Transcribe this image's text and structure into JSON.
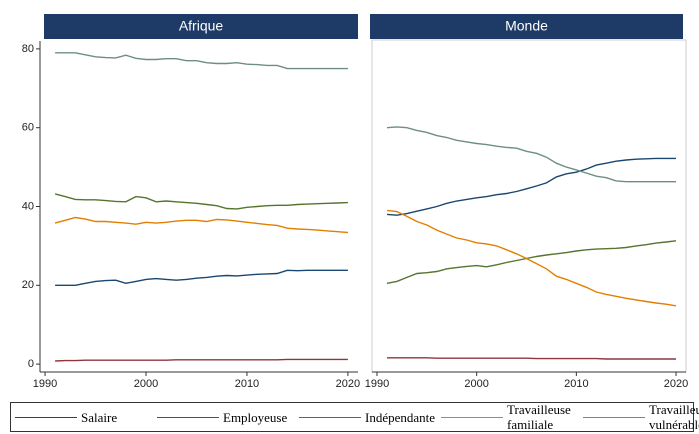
{
  "chart_data": [
    {
      "type": "line",
      "title": "Afrique",
      "x": [
        1991,
        1992,
        1993,
        1994,
        1995,
        1996,
        1997,
        1998,
        1999,
        2000,
        2001,
        2002,
        2003,
        2004,
        2005,
        2006,
        2007,
        2008,
        2009,
        2010,
        2011,
        2012,
        2013,
        2014,
        2015,
        2016,
        2017,
        2018,
        2019,
        2020
      ],
      "xlim": [
        1989.5,
        2021
      ],
      "xticks": [
        1990,
        2000,
        2010,
        2020
      ],
      "ylim": [
        -2,
        82
      ],
      "yticks": [
        0,
        20,
        40,
        60,
        80
      ],
      "series": [
        {
          "name": "Salaire",
          "color": "#1a476f",
          "values": [
            20,
            20,
            20,
            20.5,
            21,
            21.2,
            21.3,
            20.5,
            21,
            21.5,
            21.7,
            21.5,
            21.3,
            21.5,
            21.8,
            22,
            22.3,
            22.5,
            22.4,
            22.6,
            22.8,
            22.9,
            23,
            23.8,
            23.7,
            23.8,
            23.8,
            23.8,
            23.8,
            23.8
          ]
        },
        {
          "name": "Employeuse",
          "color": "#90353b",
          "values": [
            0.8,
            0.9,
            0.9,
            1,
            1,
            1,
            1,
            1,
            1,
            1,
            1,
            1,
            1.1,
            1.1,
            1.1,
            1.1,
            1.1,
            1.1,
            1.1,
            1.1,
            1.1,
            1.1,
            1.1,
            1.2,
            1.2,
            1.2,
            1.2,
            1.2,
            1.2,
            1.2
          ]
        },
        {
          "name": "Indépendante",
          "color": "#55752f",
          "values": [
            43.2,
            42.5,
            41.8,
            41.7,
            41.7,
            41.5,
            41.3,
            41.2,
            42.5,
            42.2,
            41.2,
            41.4,
            41.2,
            41,
            40.8,
            40.5,
            40.2,
            39.5,
            39.4,
            39.8,
            40,
            40.2,
            40.3,
            40.3,
            40.5,
            40.6,
            40.7,
            40.8,
            40.9,
            41
          ]
        },
        {
          "name": "Travailleuse familiale",
          "color": "#e37e00",
          "values": [
            35.8,
            36.5,
            37.2,
            36.8,
            36.2,
            36.2,
            36,
            35.8,
            35.5,
            36,
            35.8,
            36,
            36.3,
            36.5,
            36.5,
            36.2,
            36.7,
            36.6,
            36.3,
            36,
            35.7,
            35.4,
            35.2,
            34.5,
            34.3,
            34.2,
            34,
            33.8,
            33.6,
            33.4
          ]
        },
        {
          "name": "Travailleuse vulnérable",
          "color": "#6e8e84",
          "values": [
            79,
            79,
            79,
            78.5,
            78,
            77.8,
            77.7,
            78.4,
            77.6,
            77.3,
            77.3,
            77.5,
            77.5,
            77,
            77,
            76.5,
            76.3,
            76.3,
            76.5,
            76.1,
            76,
            75.8,
            75.8,
            75,
            75,
            75,
            75,
            75,
            75,
            75
          ]
        }
      ]
    },
    {
      "type": "line",
      "title": "Monde",
      "x": [
        1991,
        1992,
        1993,
        1994,
        1995,
        1996,
        1997,
        1998,
        1999,
        2000,
        2001,
        2002,
        2003,
        2004,
        2005,
        2006,
        2007,
        2008,
        2009,
        2010,
        2011,
        2012,
        2013,
        2014,
        2015,
        2016,
        2017,
        2018,
        2019,
        2020
      ],
      "xlim": [
        1989.5,
        2021
      ],
      "xticks": [
        1990,
        2000,
        2010,
        2020
      ],
      "ylim": [
        -2,
        82
      ],
      "series": [
        {
          "color": "#1a476f",
          "values": [
            38,
            37.8,
            38.2,
            38.8,
            39.4,
            40,
            40.8,
            41.4,
            41.8,
            42.2,
            42.5,
            43,
            43.3,
            43.8,
            44.5,
            45.2,
            46,
            47.5,
            48.3,
            48.7,
            49.5,
            50.5,
            51,
            51.5,
            51.8,
            52,
            52.1,
            52.2,
            52.2,
            52.2
          ]
        },
        {
          "color": "#90353b",
          "values": [
            1.6,
            1.6,
            1.6,
            1.6,
            1.6,
            1.5,
            1.5,
            1.5,
            1.5,
            1.5,
            1.5,
            1.5,
            1.5,
            1.5,
            1.5,
            1.4,
            1.4,
            1.4,
            1.4,
            1.4,
            1.4,
            1.4,
            1.3,
            1.3,
            1.3,
            1.3,
            1.3,
            1.3,
            1.3,
            1.3
          ]
        },
        {
          "color": "#55752f",
          "values": [
            20.5,
            21,
            22,
            23,
            23.2,
            23.5,
            24.2,
            24.5,
            24.8,
            25,
            24.7,
            25.2,
            25.8,
            26.3,
            26.8,
            27.3,
            27.7,
            28,
            28.3,
            28.7,
            29,
            29.2,
            29.3,
            29.4,
            29.6,
            30,
            30.3,
            30.7,
            31,
            31.3
          ]
        },
        {
          "color": "#e37e00",
          "values": [
            39,
            38.7,
            37.5,
            36.2,
            35.3,
            34,
            33,
            32,
            31.5,
            30.8,
            30.5,
            30,
            29,
            28,
            26.8,
            25.5,
            24.2,
            22.3,
            21.5,
            20.5,
            19.5,
            18.3,
            17.7,
            17.2,
            16.7,
            16.3,
            15.9,
            15.5,
            15.2,
            14.8
          ]
        },
        {
          "color": "#6e8e84",
          "values": [
            60,
            60.2,
            60,
            59.3,
            58.8,
            58,
            57.5,
            56.8,
            56.4,
            56,
            55.7,
            55.3,
            55,
            54.8,
            54,
            53.5,
            52.5,
            51,
            50,
            49.3,
            48.5,
            47.7,
            47.3,
            46.5,
            46.3,
            46.3,
            46.3,
            46.3,
            46.3,
            46.3
          ]
        }
      ]
    }
  ]
}
